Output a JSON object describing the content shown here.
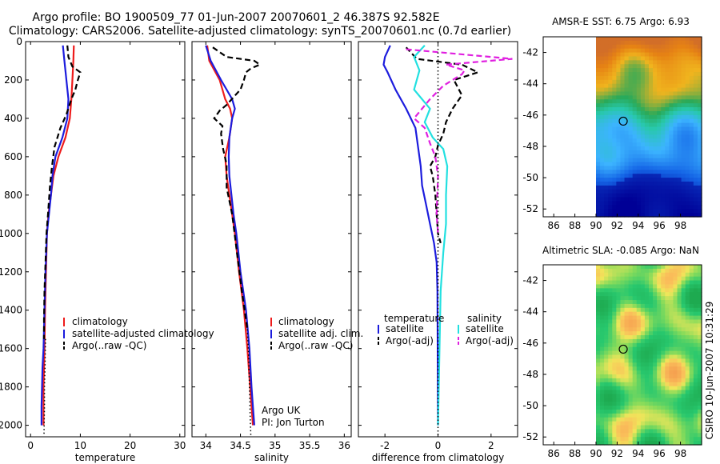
{
  "title_lines": [
    "Argo profile: BO 1900509_77 01-Jun-2007 20070601_2 46.387S 92.582E",
    "Climatology: CARS2006. Satellite-adjusted climatology: synTS_20070601.nc (0.7d earlier)"
  ],
  "side_stamp": "CSIRO 10-Jun-2007 10:31:29",
  "colors": {
    "red": "#ee1c1c",
    "blue": "#1c1cdd",
    "black": "#000000",
    "cyan": "#22e0e0",
    "magenta": "#e020e0"
  },
  "chart_data": [
    {
      "id": "temperature",
      "type": "line",
      "xlabel": "temperature",
      "xlim": [
        -1,
        31
      ],
      "ylim": [
        2060,
        0
      ],
      "xticks": [
        0,
        10,
        20,
        30
      ],
      "yticks": [
        0,
        200,
        400,
        600,
        800,
        1000,
        1200,
        1400,
        1600,
        1800,
        2000
      ],
      "legend": [
        "climatology",
        "satellite-adjusted climatology",
        "Argo(..raw -QC)"
      ],
      "series": [
        {
          "name": "climatology",
          "color": "red",
          "style": "solid",
          "x": [
            8.7,
            8.6,
            8.4,
            8.2,
            7.9,
            7.0,
            5.6,
            4.6,
            4.1,
            3.6,
            3.3,
            3.1,
            2.9,
            2.8,
            2.7,
            2.6,
            2.6,
            2.6
          ],
          "y": [
            20,
            100,
            200,
            300,
            400,
            500,
            600,
            700,
            800,
            900,
            1000,
            1200,
            1400,
            1600,
            1700,
            1800,
            1900,
            2000
          ]
        },
        {
          "name": "satellite-adjusted climatology",
          "color": "blue",
          "style": "solid",
          "x": [
            6.5,
            6.8,
            7.2,
            7.6,
            7.4,
            6.4,
            5.0,
            4.4,
            4.1,
            3.7,
            3.3,
            3.0,
            2.8,
            2.6,
            2.4,
            2.3,
            2.2,
            2.2
          ],
          "y": [
            20,
            100,
            200,
            300,
            400,
            500,
            600,
            700,
            800,
            900,
            1000,
            1200,
            1400,
            1600,
            1700,
            1800,
            1900,
            2000
          ]
        },
        {
          "name": "Argo(..raw -QC)",
          "color": "black",
          "style": "dashed",
          "x": [
            7.4,
            7.6,
            8.4,
            10.0,
            9.5,
            9.0,
            8.2,
            7.2,
            6.0,
            4.8,
            4.3,
            3.9,
            3.5,
            3.2,
            3.0,
            2.8,
            2.7,
            2.7
          ],
          "y": [
            20,
            80,
            130,
            160,
            200,
            250,
            300,
            380,
            450,
            550,
            650,
            750,
            900,
            1000,
            1150,
            1300,
            1450,
            1550
          ]
        },
        {
          "name": "Argo dotted",
          "color": "black",
          "style": "dotted",
          "x": [
            3.0,
            2.9,
            2.8,
            2.8,
            2.7
          ],
          "y": [
            1550,
            1700,
            1800,
            1900,
            2050
          ]
        }
      ]
    },
    {
      "id": "salinity",
      "type": "line",
      "xlabel": "salinity",
      "xlim": [
        33.8,
        36.1
      ],
      "ylim": [
        2060,
        0
      ],
      "xticks": [
        34,
        34.5,
        35,
        35.5,
        36
      ],
      "yticks": [
        0,
        200,
        400,
        600,
        800,
        1000,
        1200,
        1400,
        1600,
        1800,
        2000
      ],
      "legend": [
        "climatology",
        "satellite adj. clim.",
        "Argo(..raw -QC)"
      ],
      "annotation": [
        "Argo UK",
        "PI: Jon Turton"
      ],
      "series": [
        {
          "name": "climatology",
          "color": "red",
          "style": "solid",
          "x": [
            34.02,
            34.05,
            34.2,
            34.28,
            34.35,
            34.38,
            34.34,
            34.28,
            34.3,
            34.34,
            34.38,
            34.42,
            34.48,
            34.55,
            34.6,
            34.64,
            34.66,
            34.68
          ],
          "y": [
            20,
            100,
            200,
            300,
            350,
            400,
            500,
            600,
            700,
            800,
            900,
            1000,
            1200,
            1400,
            1600,
            1800,
            1900,
            2000
          ]
        },
        {
          "name": "satellite adj. clim.",
          "color": "blue",
          "style": "solid",
          "x": [
            34.0,
            34.07,
            34.22,
            34.38,
            34.42,
            34.38,
            34.34,
            34.33,
            34.34,
            34.37,
            34.4,
            34.44,
            34.5,
            34.58,
            34.63,
            34.66,
            34.68,
            34.7
          ],
          "y": [
            20,
            100,
            200,
            300,
            350,
            400,
            500,
            600,
            700,
            800,
            900,
            1000,
            1200,
            1400,
            1600,
            1800,
            1900,
            2000
          ]
        },
        {
          "name": "Argo(..raw -QC)",
          "color": "black",
          "style": "dashed",
          "x": [
            34.1,
            34.3,
            34.7,
            34.78,
            34.65,
            34.58,
            34.55,
            34.5,
            34.45,
            34.4,
            34.3,
            34.2,
            34.12,
            34.24,
            34.22,
            34.25,
            34.3,
            34.3,
            34.38,
            34.45,
            34.52,
            34.6
          ],
          "y": [
            30,
            80,
            100,
            120,
            140,
            160,
            200,
            250,
            270,
            290,
            330,
            360,
            400,
            440,
            480,
            560,
            640,
            760,
            900,
            1100,
            1300,
            1500
          ]
        },
        {
          "name": "Argo dotted",
          "color": "black",
          "style": "dotted",
          "x": [
            34.6,
            34.62,
            34.63,
            34.64,
            34.65
          ],
          "y": [
            1500,
            1650,
            1800,
            1950,
            2050
          ]
        }
      ]
    },
    {
      "id": "difference",
      "type": "line",
      "xlabel": "difference from climatology",
      "xlim": [
        -3,
        3
      ],
      "ylim": [
        2060,
        0
      ],
      "xticks": [
        -2,
        0,
        2
      ],
      "yticks": [
        0,
        200,
        400,
        600,
        800,
        1000,
        1200,
        1400,
        1600,
        1800,
        2000
      ],
      "legend_headers": [
        "temperature",
        "salinity"
      ],
      "legend_left": [
        "satellite",
        "Argo(-adj)"
      ],
      "legend_right": [
        "satellite",
        "Argo(-adj)"
      ],
      "series": [
        {
          "name": "T satellite",
          "color": "blue",
          "style": "solid",
          "x": [
            -1.8,
            -2.0,
            -2.05,
            -1.9,
            -1.6,
            -1.2,
            -0.85,
            -0.75,
            -0.65,
            -0.6,
            -0.45,
            -0.3,
            -0.15,
            -0.05,
            -0.02,
            0
          ],
          "y": [
            20,
            80,
            120,
            160,
            250,
            350,
            450,
            550,
            650,
            750,
            850,
            950,
            1050,
            1150,
            1300,
            2000
          ]
        },
        {
          "name": "T Argo(-adj)",
          "color": "black",
          "style": "dashed",
          "x": [
            -1.2,
            -1.0,
            -0.8,
            0.9,
            1.5,
            0.6,
            0.9,
            0.55,
            0.3,
            0.2,
            0.0,
            -0.1,
            -0.3,
            -0.2,
            -0.1,
            -0.05,
            0,
            0.1
          ],
          "y": [
            30,
            60,
            90,
            120,
            160,
            200,
            280,
            350,
            420,
            480,
            540,
            600,
            650,
            700,
            800,
            900,
            1000,
            1050
          ]
        },
        {
          "name": "S satellite",
          "color": "cyan",
          "style": "solid",
          "x": [
            -0.5,
            -0.9,
            -0.7,
            -0.9,
            -0.3,
            -0.5,
            -0.2,
            0.2,
            0.35,
            0.3,
            0.3,
            0.2,
            0.1,
            0
          ],
          "y": [
            20,
            80,
            150,
            250,
            350,
            420,
            500,
            560,
            650,
            800,
            950,
            1100,
            1300,
            2000
          ]
        },
        {
          "name": "S Argo(-adj)",
          "color": "magenta",
          "style": "dashed",
          "x": [
            -1.2,
            2.8,
            0.3,
            1.0,
            0.9,
            0.2,
            -0.3,
            -0.9,
            -0.5,
            -0.3,
            -0.1,
            0,
            -0.05,
            0
          ],
          "y": [
            40,
            90,
            120,
            150,
            170,
            230,
            300,
            400,
            450,
            530,
            600,
            700,
            900,
            1000
          ]
        },
        {
          "name": "zero line",
          "color": "black",
          "style": "dotted",
          "x": [
            0,
            0
          ],
          "y": [
            0,
            2060
          ]
        }
      ]
    }
  ],
  "maps": [
    {
      "id": "sst-map",
      "title": "AMSR-E SST: 6.75 Argo: 6.93",
      "xticks": [
        "86",
        "88",
        "90",
        "92",
        "94",
        "96",
        "98"
      ],
      "yticks": [
        "-42",
        "-44",
        "-46",
        "-48",
        "-50",
        "-52"
      ],
      "marker": {
        "lon": 92.58,
        "lat": -46.39
      }
    },
    {
      "id": "sla-map",
      "title": "Altimetric SLA: -0.085 Argo: NaN",
      "xticks": [
        "86",
        "88",
        "90",
        "92",
        "94",
        "96",
        "98"
      ],
      "yticks": [
        "-42",
        "-44",
        "-46",
        "-48",
        "-50",
        "-52"
      ],
      "marker": {
        "lon": 92.58,
        "lat": -46.39
      }
    }
  ]
}
